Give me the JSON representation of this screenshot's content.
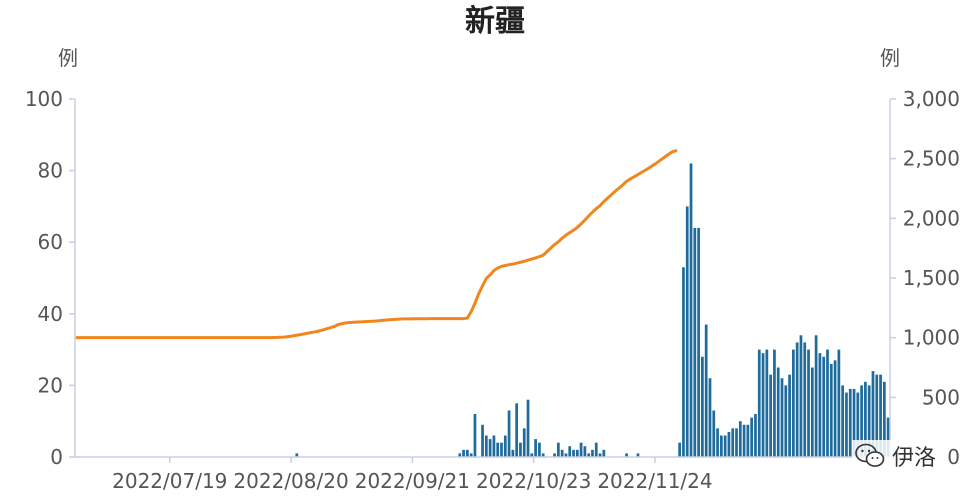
{
  "title": "新疆",
  "left_unit": "例",
  "right_unit": "例",
  "watermark_text": "伊洛",
  "colors": {
    "bar": "#1f6c9c",
    "line": "#f0861d",
    "axis": "#c7cfe3",
    "text": "#555555"
  },
  "chart_data": {
    "type": "bar+line",
    "title": "新疆",
    "x_tick_labels": [
      "2022/07/19",
      "2022/08/20",
      "2022/09/21",
      "2022/10/23",
      "2022/11/24"
    ],
    "x_tick_days_from_start": [
      25,
      57,
      89,
      121,
      153
    ],
    "y_left": {
      "label": "例",
      "range": [
        0,
        100
      ],
      "ticks": [
        0,
        20,
        40,
        60,
        80,
        100
      ]
    },
    "y_right": {
      "label": "例",
      "range": [
        0,
        3000
      ],
      "ticks": [
        "0",
        "500",
        "1,000",
        "1,500",
        "2,000",
        "2,500",
        "3,000"
      ]
    },
    "grid": false,
    "bar_series": {
      "axis": "left",
      "values": [
        0,
        0,
        0,
        0,
        0,
        0,
        0,
        0,
        0,
        0,
        0,
        0,
        0,
        0,
        0,
        0,
        0,
        0,
        0,
        0,
        0,
        0,
        0,
        0,
        0,
        0,
        0,
        0,
        0,
        0,
        0,
        0,
        0,
        0,
        0,
        0,
        0,
        0,
        0,
        0,
        0,
        0,
        0,
        0,
        0,
        0,
        0,
        0,
        0,
        0,
        0,
        0,
        0,
        0,
        0,
        0,
        0,
        0,
        1,
        0,
        0,
        0,
        0,
        0,
        0,
        0,
        0,
        0,
        0,
        0,
        0,
        0,
        0,
        0,
        0,
        0,
        0,
        0,
        0,
        0,
        0,
        0,
        0,
        0,
        0,
        0,
        0,
        0,
        0,
        0,
        0,
        0,
        0,
        0,
        0,
        0,
        0,
        0,
        0,
        0,
        0,
        1,
        2,
        2,
        1,
        12,
        0,
        9,
        6,
        5,
        6,
        4,
        4,
        6,
        13,
        2,
        15,
        4,
        8,
        16,
        1,
        5,
        4,
        1,
        0,
        0,
        1,
        4,
        2,
        1,
        3,
        2,
        2,
        4,
        3,
        1,
        2,
        4,
        1,
        2,
        0,
        0,
        0,
        0,
        0,
        1,
        0,
        0,
        1,
        0,
        0,
        0,
        0,
        0,
        0,
        0,
        0,
        0,
        0,
        4,
        53,
        70,
        82,
        64,
        64,
        28,
        37,
        22,
        13,
        8,
        6,
        6,
        7,
        8,
        8,
        10,
        9,
        9,
        11,
        12,
        30,
        29,
        30,
        23,
        30,
        25,
        22,
        20,
        23,
        30,
        32,
        34,
        32,
        30,
        25,
        34,
        29,
        28,
        30,
        26,
        27,
        30,
        20,
        18,
        19,
        19,
        18,
        20,
        21,
        20,
        24,
        23,
        23,
        21,
        11
      ],
      "note": "daily new cases, first bar at 2022/06/24"
    },
    "line_series": {
      "axis": "right",
      "values": [
        1000,
        1000,
        1000,
        1000,
        1000,
        1000,
        1000,
        1000,
        1000,
        1000,
        1000,
        1000,
        1000,
        1000,
        1000,
        1000,
        1000,
        1000,
        1000,
        1000,
        1000,
        1000,
        1000,
        1000,
        1000,
        1000,
        1000,
        1000,
        1000,
        1000,
        1000,
        1000,
        1000,
        1000,
        1000,
        1000,
        1000,
        1000,
        1000,
        1000,
        1000,
        1000,
        1000,
        1000,
        1000,
        1000,
        1000,
        1000,
        1000,
        1000,
        1000,
        1000,
        1001,
        1002,
        1004,
        1006,
        1010,
        1015,
        1020,
        1026,
        1032,
        1038,
        1044,
        1050,
        1057,
        1066,
        1075,
        1085,
        1095,
        1110,
        1118,
        1124,
        1127,
        1129,
        1131,
        1132,
        1134,
        1136,
        1138,
        1140,
        1143,
        1146,
        1149,
        1151,
        1153,
        1155,
        1157,
        1157,
        1157,
        1158,
        1158,
        1159,
        1159,
        1160,
        1160,
        1160,
        1160,
        1160,
        1160,
        1160,
        1160,
        1160,
        1160,
        1164,
        1217,
        1287,
        1369,
        1433,
        1497,
        1525,
        1562,
        1584,
        1597,
        1605,
        1611,
        1617,
        1624,
        1632,
        1640,
        1650,
        1659,
        1668,
        1679,
        1691,
        1721,
        1750,
        1780,
        1803,
        1833,
        1858,
        1880,
        1900,
        1923,
        1953,
        1985,
        2019,
        2051,
        2081,
        2106,
        2140,
        2169,
        2197,
        2227,
        2253,
        2280,
        2310,
        2330,
        2348,
        2367,
        2386,
        2404,
        2424,
        2445,
        2465,
        2489,
        2512,
        2535,
        2556,
        2567
      ],
      "note": "cumulative cases"
    }
  }
}
